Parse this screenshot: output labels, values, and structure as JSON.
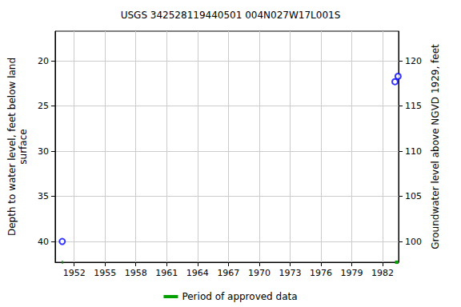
{
  "chart_data": {
    "type": "scatter",
    "title": "USGS 342528119440501 004N027W17L001S",
    "y_label": "Depth to water level, feet below land\nsurface",
    "y2_label": "Groundwater level above NGVD 1929, feet",
    "xlim": [
      1950.15,
      1983.55
    ],
    "xticks": [
      1952,
      1955,
      1958,
      1961,
      1964,
      1967,
      1970,
      1973,
      1976,
      1979,
      1982
    ],
    "ylim": [
      16.7,
      42.3
    ],
    "yticks": [
      20,
      25,
      30,
      35,
      40
    ],
    "y2lim": [
      97.7,
      123.3
    ],
    "y2ticks": [
      100,
      105,
      110,
      115,
      120
    ],
    "grid": true,
    "legend": "bottom",
    "series": [
      {
        "type": "scatter",
        "color": "#0000ff",
        "marker": "circle",
        "x": [
          1950.84,
          1983.2,
          1983.5
        ],
        "values": [
          40.0,
          22.3,
          21.7
        ]
      }
    ],
    "approved_periods": {
      "name": "Period of approved data",
      "color": "#00a000",
      "ranges": [
        [
          1950.8,
          1950.9
        ],
        [
          1983.2,
          1983.55
        ]
      ]
    }
  }
}
